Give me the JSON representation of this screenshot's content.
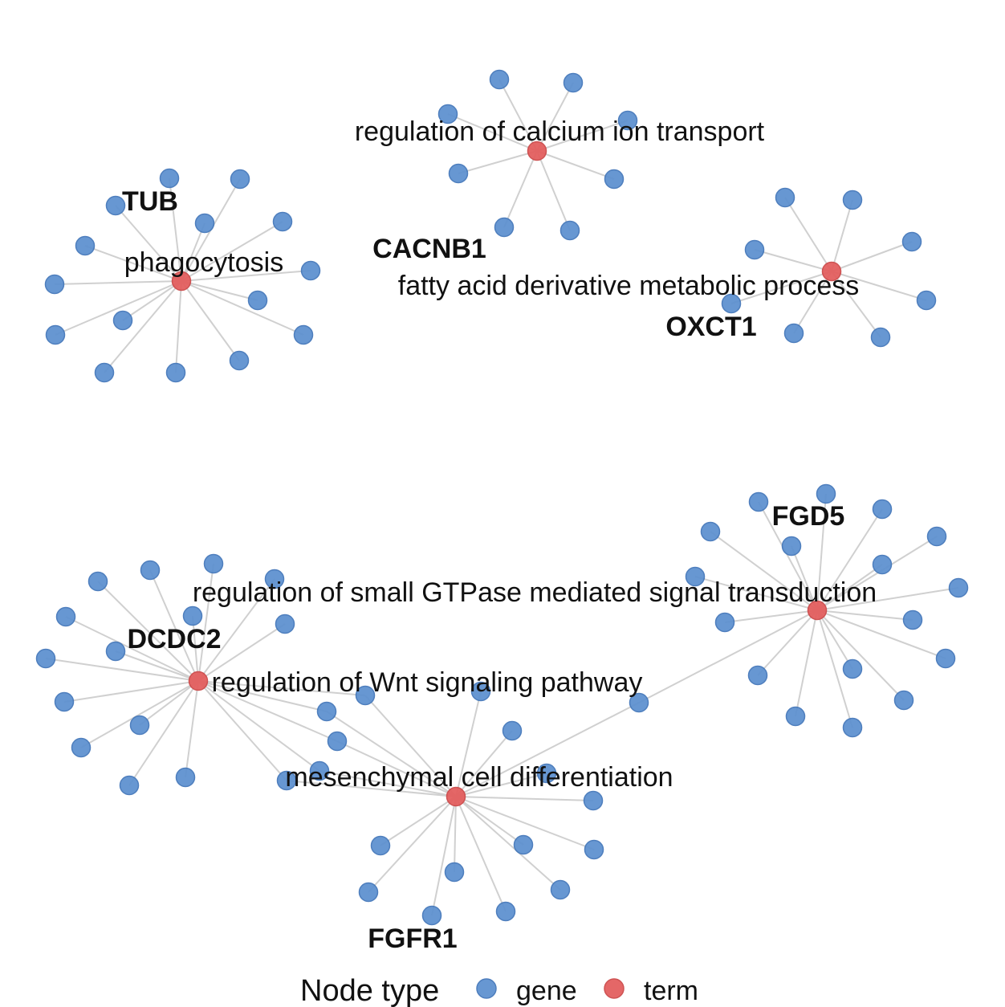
{
  "legend": {
    "title": "Node type",
    "gene_label": "gene",
    "term_label": "term",
    "gene_color": "#5b8fcf",
    "term_color": "#e35f5f"
  },
  "terms": [
    {
      "id": "t_calcium",
      "label": "regulation of calcium ion transport"
    },
    {
      "id": "t_phago",
      "label": "phagocytosis"
    },
    {
      "id": "t_fatty",
      "label": "fatty acid derivative metabolic process"
    },
    {
      "id": "t_gtpase",
      "label": "regulation of small GTPase mediated signal transduction"
    },
    {
      "id": "t_wnt",
      "label": "regulation of Wnt signaling pathway"
    },
    {
      "id": "t_mesen",
      "label": "mesenchymal cell differentiation"
    }
  ],
  "labeled_genes": [
    "TUB",
    "CACNB1",
    "OXCT1",
    "FGD5",
    "DCDC2",
    "FGFR1"
  ]
}
